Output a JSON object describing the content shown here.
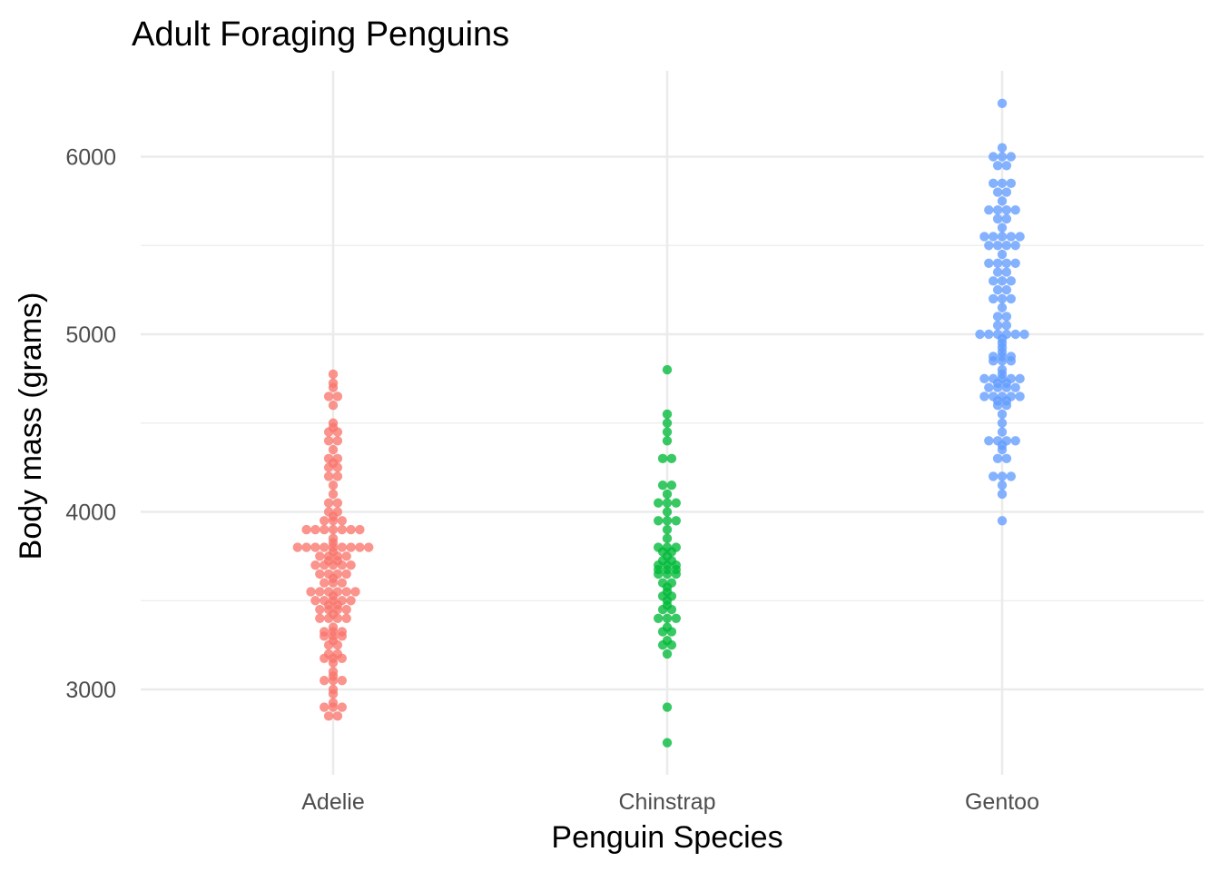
{
  "chart_data": {
    "type": "scatter",
    "title": "Adult Foraging Penguins",
    "xlabel": "Penguin Species",
    "ylabel": "Body mass (grams)",
    "categories": [
      "Adelie",
      "Chinstrap",
      "Gentoo"
    ],
    "ylim": [
      2520,
      6480
    ],
    "yticks": [
      3000,
      4000,
      5000,
      6000
    ],
    "grid": true,
    "legend": "none",
    "series": [
      {
        "category": "Adelie",
        "color": "#F8766D",
        "values": [
          2850,
          2850,
          2900,
          2900,
          2900,
          2925,
          2975,
          3000,
          3050,
          3050,
          3050,
          3075,
          3100,
          3150,
          3175,
          3175,
          3175,
          3200,
          3200,
          3250,
          3250,
          3275,
          3300,
          3300,
          3300,
          3325,
          3325,
          3325,
          3350,
          3400,
          3400,
          3400,
          3400,
          3425,
          3450,
          3450,
          3450,
          3450,
          3475,
          3475,
          3500,
          3500,
          3500,
          3500,
          3500,
          3525,
          3550,
          3550,
          3550,
          3550,
          3550,
          3550,
          3600,
          3600,
          3600,
          3625,
          3650,
          3650,
          3650,
          3650,
          3700,
          3700,
          3700,
          3700,
          3700,
          3725,
          3725,
          3750,
          3750,
          3750,
          3750,
          3775,
          3800,
          3800,
          3800,
          3800,
          3800,
          3800,
          3800,
          3800,
          3800,
          3825,
          3850,
          3900,
          3900,
          3900,
          3900,
          3900,
          3900,
          3900,
          3950,
          3950,
          3950,
          3975,
          4000,
          4000,
          4050,
          4050,
          4100,
          4150,
          4200,
          4200,
          4250,
          4250,
          4275,
          4300,
          4300,
          4350,
          4400,
          4400,
          4450,
          4450,
          4475,
          4500,
          4600,
          4650,
          4650,
          4700,
          4725,
          4775
        ]
      },
      {
        "category": "Chinstrap",
        "color": "#00BA38",
        "values": [
          2700,
          2900,
          3200,
          3250,
          3250,
          3275,
          3325,
          3325,
          3350,
          3400,
          3400,
          3400,
          3450,
          3450,
          3475,
          3500,
          3525,
          3525,
          3550,
          3575,
          3600,
          3600,
          3650,
          3650,
          3650,
          3675,
          3675,
          3675,
          3700,
          3700,
          3700,
          3725,
          3725,
          3750,
          3775,
          3775,
          3800,
          3800,
          3800,
          3850,
          3900,
          3950,
          3950,
          3950,
          4000,
          4050,
          4050,
          4050,
          4100,
          4150,
          4150,
          4300,
          4300,
          4400,
          4450,
          4500,
          4550,
          4800
        ]
      },
      {
        "category": "Gentoo",
        "color": "#619CFF",
        "values": [
          3950,
          4100,
          4150,
          4200,
          4200,
          4200,
          4300,
          4300,
          4350,
          4375,
          4400,
          4400,
          4400,
          4400,
          4450,
          4500,
          4550,
          4600,
          4600,
          4625,
          4625,
          4650,
          4650,
          4650,
          4650,
          4650,
          4700,
          4700,
          4700,
          4700,
          4725,
          4725,
          4750,
          4750,
          4750,
          4750,
          4750,
          4775,
          4800,
          4850,
          4850,
          4850,
          4875,
          4875,
          4875,
          4900,
          4925,
          4950,
          4975,
          5000,
          5000,
          5000,
          5000,
          5000,
          5000,
          5050,
          5050,
          5100,
          5100,
          5150,
          5200,
          5200,
          5200,
          5250,
          5250,
          5300,
          5300,
          5300,
          5350,
          5350,
          5400,
          5400,
          5400,
          5400,
          5450,
          5500,
          5500,
          5500,
          5500,
          5550,
          5550,
          5550,
          5550,
          5550,
          5600,
          5650,
          5650,
          5700,
          5700,
          5700,
          5700,
          5750,
          5800,
          5800,
          5850,
          5850,
          5850,
          5950,
          5950,
          6000,
          6000,
          6000,
          6050,
          6300
        ]
      }
    ]
  }
}
